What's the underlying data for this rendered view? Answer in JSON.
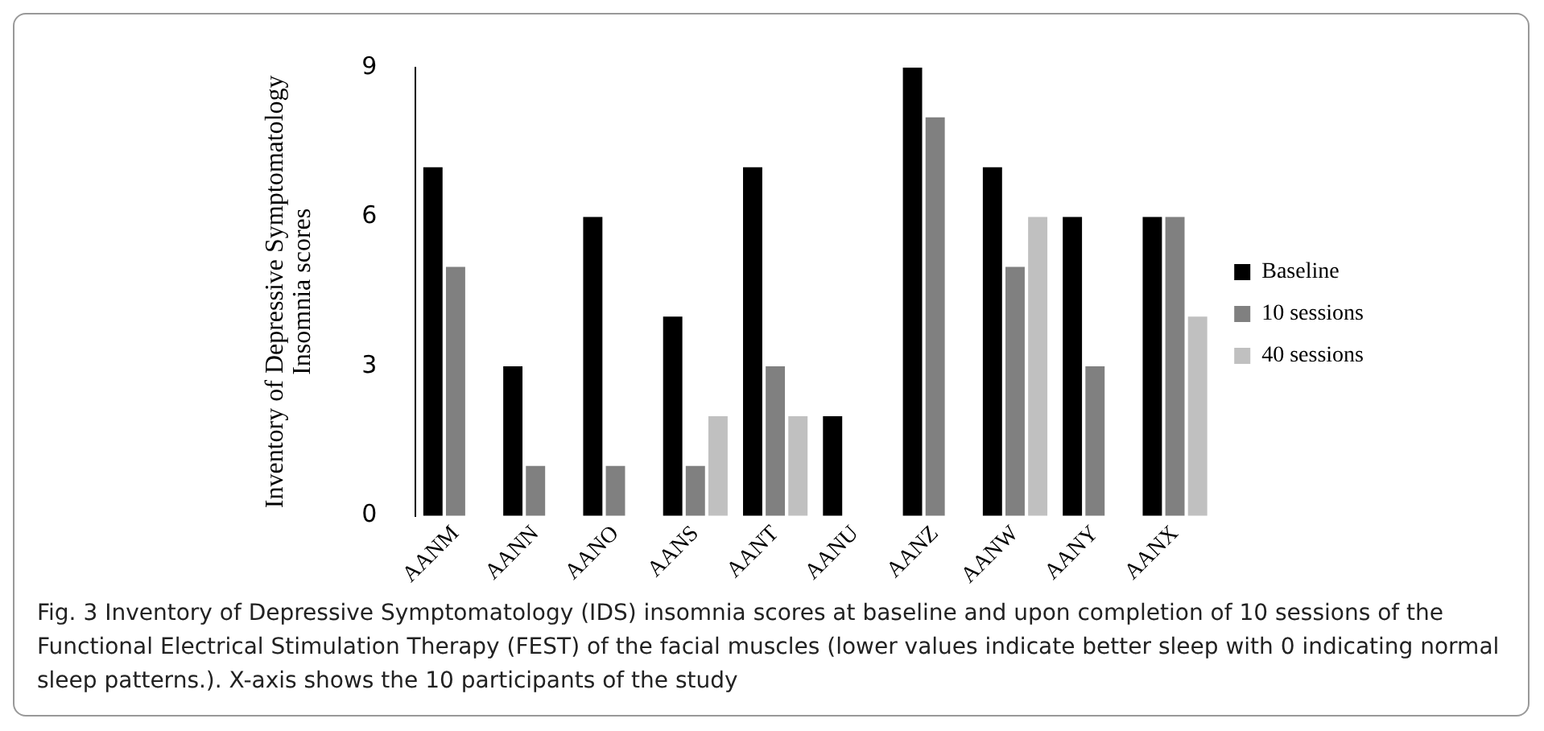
{
  "chart_data": {
    "type": "bar",
    "ylabel": "Inventory of Depressive Symptomatology\nInsomnia scores",
    "categories": [
      "AANM",
      "AANN",
      "AANO",
      "AANS",
      "AANT",
      "AANU",
      "AANZ",
      "AANW",
      "AANY",
      "AANX"
    ],
    "series": [
      {
        "name": "Baseline",
        "color": "#000000",
        "values": [
          7,
          3,
          6,
          4,
          7,
          2,
          9,
          7,
          6,
          6
        ]
      },
      {
        "name": "10 sessions",
        "color": "#808080",
        "values": [
          5,
          1,
          1,
          1,
          3,
          null,
          8,
          5,
          3,
          6
        ]
      },
      {
        "name": "40 sessions",
        "color": "#c0c0c0",
        "values": [
          null,
          null,
          null,
          2,
          2,
          null,
          null,
          6,
          null,
          4
        ]
      }
    ],
    "ylim": [
      0,
      9
    ],
    "yticks": [
      0,
      3,
      6,
      9
    ],
    "grid": false,
    "legend": "right",
    "annotations": [
      "Fig. 3  Inventory of Depressive Symptomatology (IDS) insomnia scores at baseline and upon completion of 10 sessions of the Functional Electrical Stimulation Therapy (FEST) of the facial muscles (lower values indicate better sleep with 0 indicating normal sleep patterns.). X-axis shows the 10 participants of the study"
    ]
  }
}
